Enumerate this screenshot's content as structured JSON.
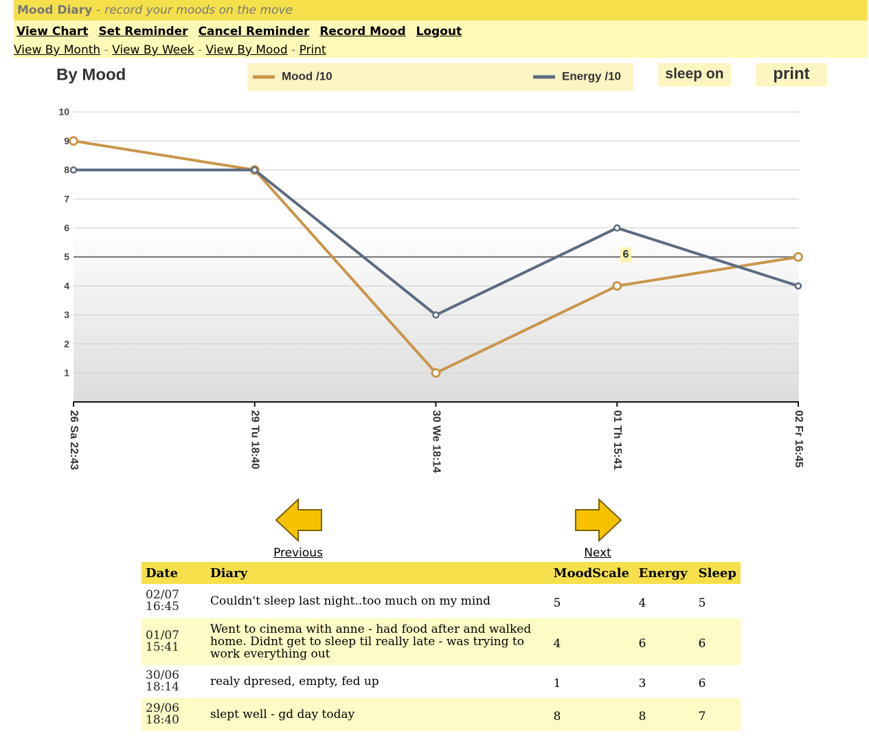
{
  "header": {
    "title": "Mood Diary",
    "separator": "-",
    "tagline": "record your moods on the move"
  },
  "nav": [
    "View Chart",
    "Set Reminder",
    "Cancel Reminder",
    "Record Mood",
    "Logout"
  ],
  "subnav": [
    "View By Month",
    "View By Week",
    "View By Mood",
    "Print"
  ],
  "subnav_separator": "-",
  "buttons": [
    "sleep on",
    "print"
  ],
  "chart_data": {
    "type": "line",
    "title": "By Mood",
    "categories": [
      "26 Sa 22:43",
      "29 Tu 18:40",
      "30 We 18:14",
      "01 Th 15:41",
      "02 Fr 16:45"
    ],
    "series": [
      {
        "name": "Mood /10",
        "color": "#c9954b",
        "values": [
          9,
          8,
          1,
          4,
          5
        ]
      },
      {
        "name": "Energy /10",
        "color": "#5b6b80",
        "values": [
          8,
          8,
          3,
          6,
          4
        ]
      }
    ],
    "ylim": [
      0,
      10
    ],
    "yticks": [
      1,
      2,
      3,
      4,
      5,
      6,
      7,
      8,
      9,
      10
    ],
    "grid": true,
    "reference_line": 5,
    "annotation": "6"
  },
  "pager": {
    "previous": "Previous",
    "next": "Next"
  },
  "table": {
    "columns": [
      "Date",
      "Diary",
      "MoodScale",
      "Energy",
      "Sleep"
    ],
    "rows": [
      [
        {
          "date": "02/07",
          "time": "16:45"
        },
        "Couldn't sleep last night..too much on my mind",
        5,
        4,
        5
      ],
      [
        {
          "date": "01/07",
          "time": "15:41"
        },
        "Went to cinema with anne - had food after and walked home. Didnt get to sleep til really late - was trying to work everything out",
        4,
        6,
        6
      ],
      [
        {
          "date": "30/06",
          "time": "18:14"
        },
        "realy dpresed, empty, fed up",
        1,
        3,
        6
      ],
      [
        {
          "date": "29/06",
          "time": "18:40"
        },
        "slept well - gd day today",
        8,
        8,
        7
      ]
    ]
  }
}
